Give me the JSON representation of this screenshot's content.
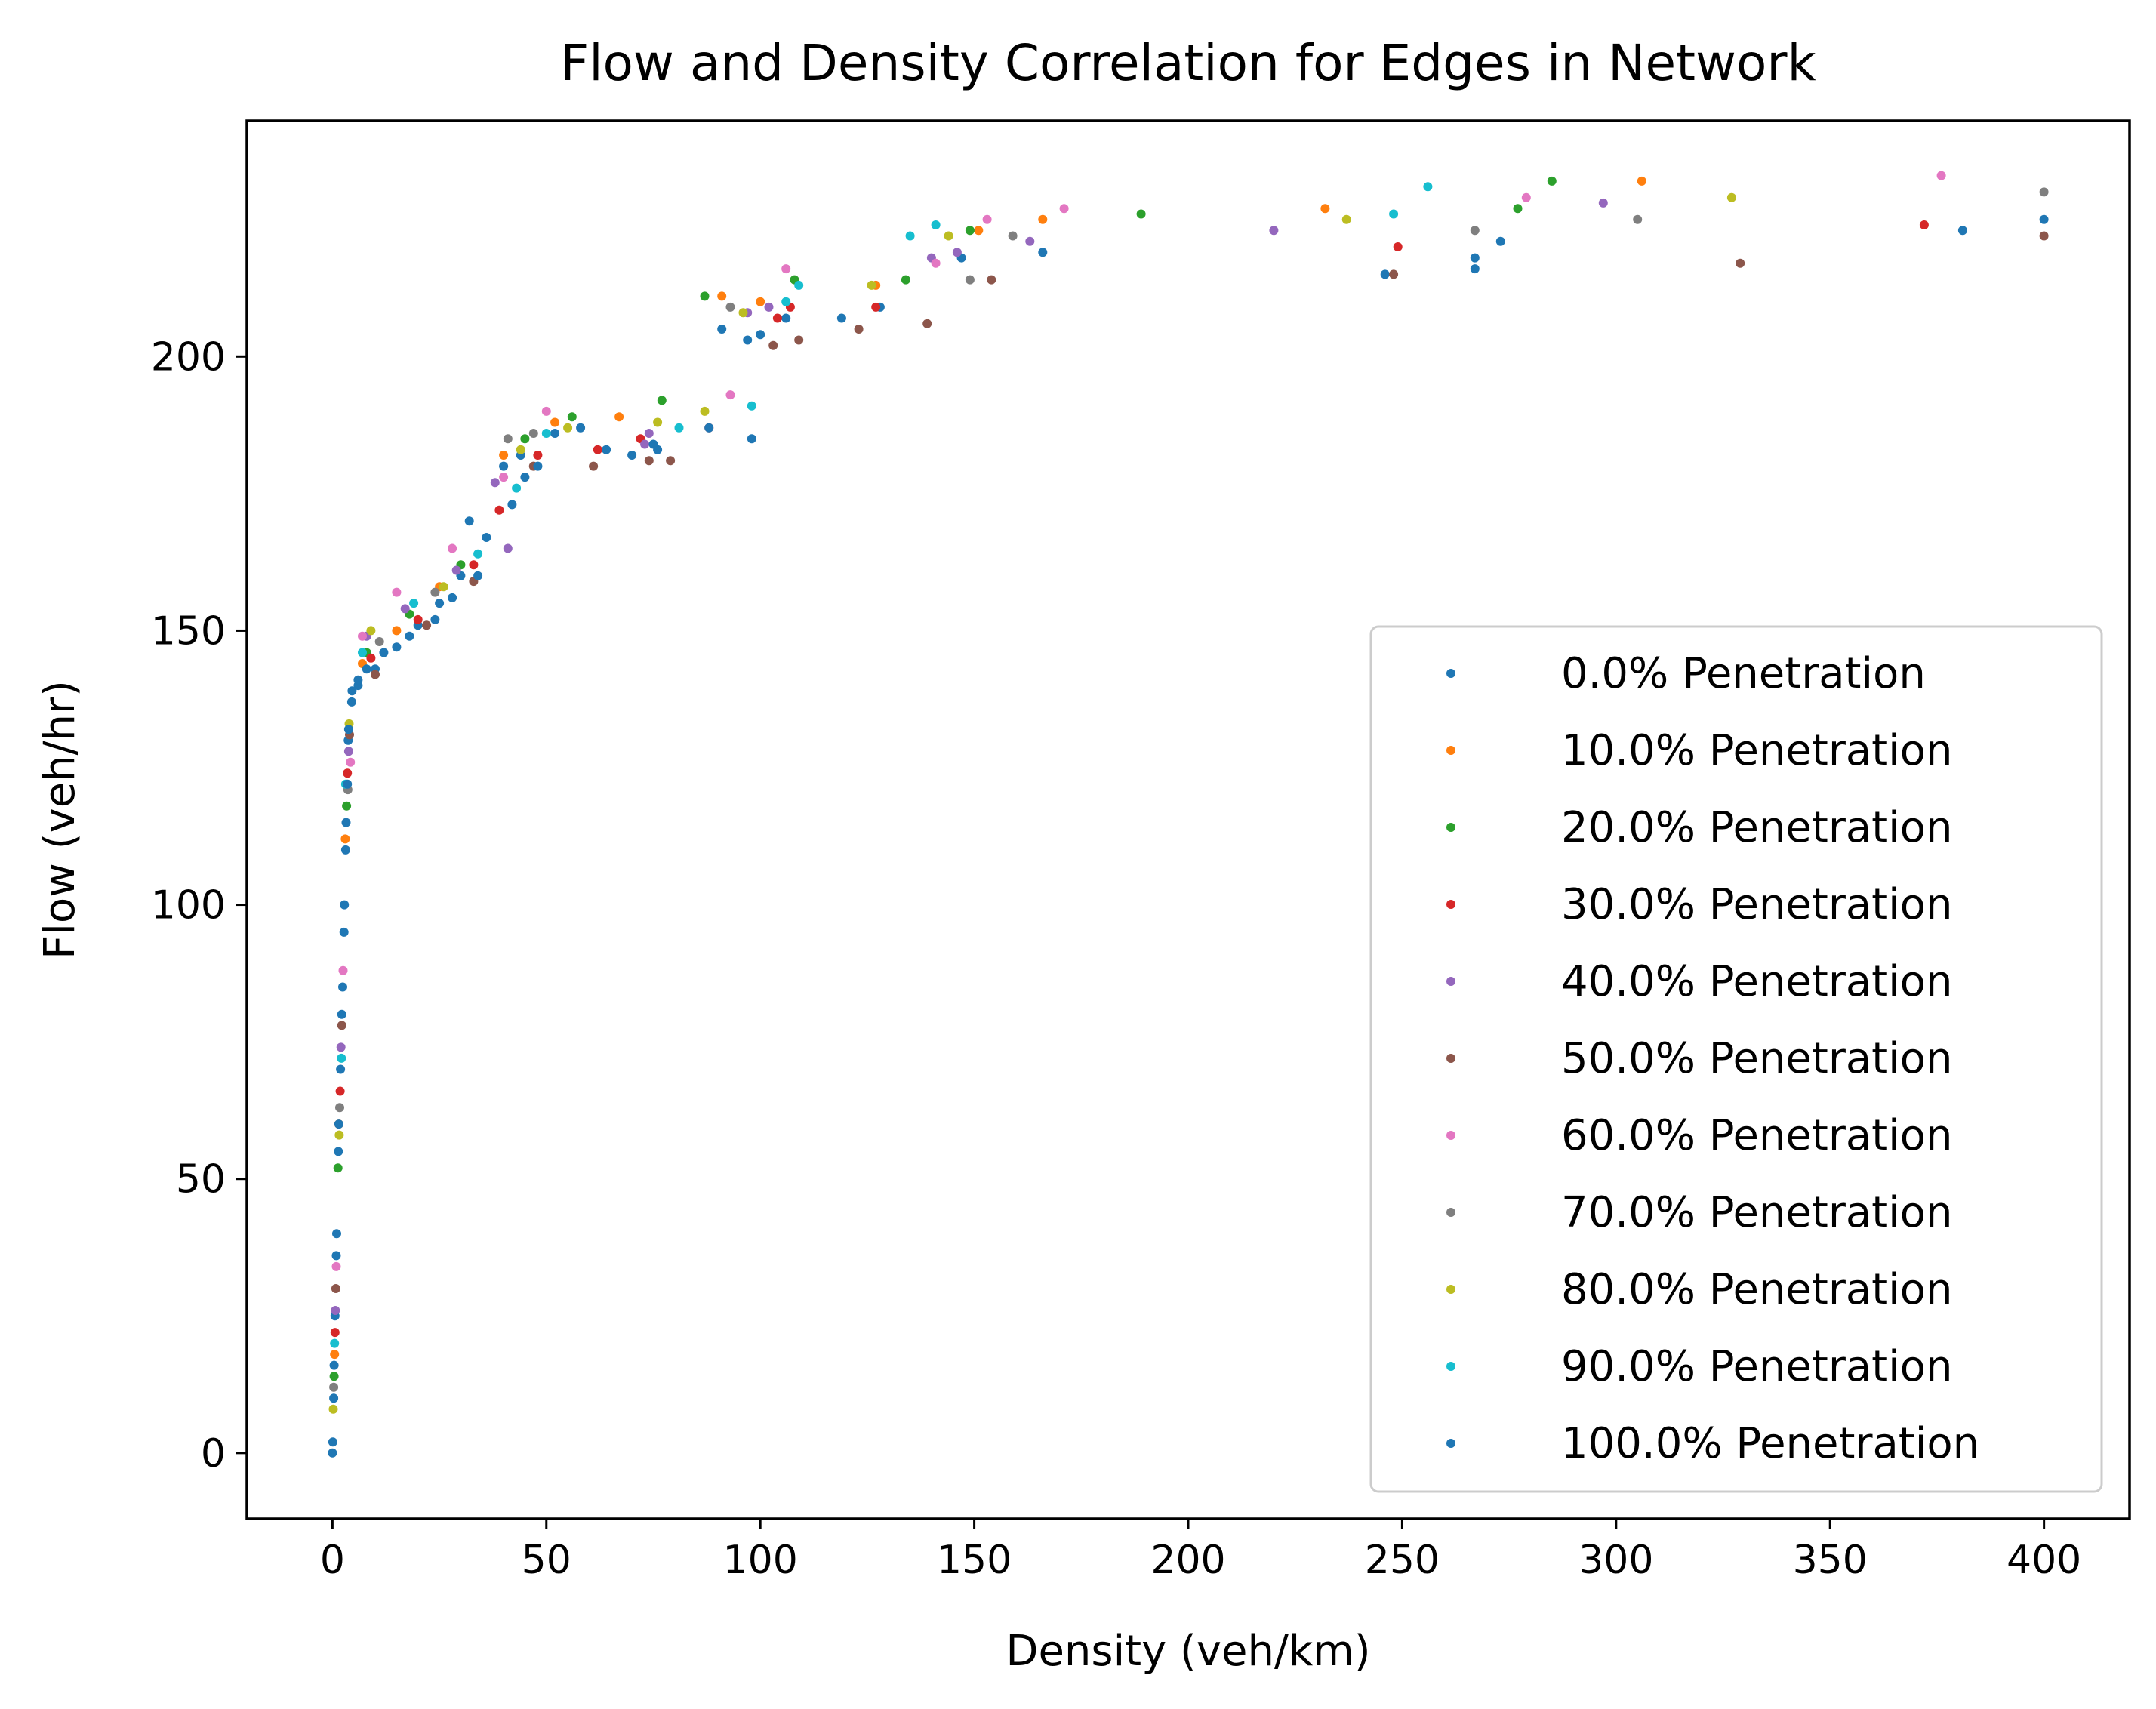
{
  "chart_data": {
    "type": "scatter",
    "title": "Flow and Density Correlation for Edges in Network",
    "xlabel": "Density (veh/km)",
    "ylabel": "Flow (veh/hr)",
    "xlim": [
      -20,
      420
    ],
    "ylim": [
      -12,
      243
    ],
    "x_ticks": [
      0,
      50,
      100,
      150,
      200,
      250,
      300,
      350,
      400
    ],
    "y_ticks": [
      0,
      50,
      100,
      150,
      200
    ],
    "legend_position": "center-right",
    "grid": false,
    "series": [
      {
        "name": "0.0% Penetration",
        "color": "#1f77b4",
        "points": [
          [
            0,
            0
          ],
          [
            0.3,
            10
          ],
          [
            0.6,
            25
          ],
          [
            1.0,
            40
          ],
          [
            1.4,
            55
          ],
          [
            1.9,
            70
          ],
          [
            2.4,
            85
          ],
          [
            2.8,
            100
          ],
          [
            3.2,
            115
          ],
          [
            3.7,
            130
          ],
          [
            4.5,
            137
          ],
          [
            6,
            140
          ],
          [
            10,
            143
          ],
          [
            15,
            147
          ],
          [
            20,
            151
          ],
          [
            25,
            155
          ],
          [
            30,
            160
          ],
          [
            32,
            170
          ],
          [
            40,
            180
          ],
          [
            44,
            182
          ],
          [
            52,
            186
          ],
          [
            64,
            183
          ],
          [
            70,
            182
          ],
          [
            76,
            183
          ],
          [
            91,
            205
          ],
          [
            97,
            203
          ],
          [
            100,
            204
          ],
          [
            106,
            207
          ],
          [
            119,
            207
          ],
          [
            128,
            209
          ],
          [
            147,
            218
          ],
          [
            166,
            219
          ],
          [
            246,
            215
          ],
          [
            267,
            216
          ],
          [
            267,
            218
          ],
          [
            273,
            221
          ],
          [
            381,
            223
          ],
          [
            400,
            225
          ]
        ]
      },
      {
        "name": "10.0% Penetration",
        "color": "#ff7f0e",
        "points": [
          [
            0.5,
            18
          ],
          [
            1.5,
            60
          ],
          [
            3,
            112
          ],
          [
            7,
            144
          ],
          [
            15,
            150
          ],
          [
            25,
            158
          ],
          [
            40,
            182
          ],
          [
            52,
            188
          ],
          [
            67,
            189
          ],
          [
            91,
            211
          ],
          [
            100,
            210
          ],
          [
            127,
            213
          ],
          [
            151,
            223
          ],
          [
            166,
            225
          ],
          [
            232,
            227
          ],
          [
            306,
            232
          ]
        ]
      },
      {
        "name": "20.0% Penetration",
        "color": "#2ca02c",
        "points": [
          [
            0.4,
            14
          ],
          [
            1.3,
            52
          ],
          [
            3.3,
            118
          ],
          [
            8,
            146
          ],
          [
            18,
            153
          ],
          [
            30,
            162
          ],
          [
            45,
            185
          ],
          [
            56,
            189
          ],
          [
            77,
            192
          ],
          [
            87,
            211
          ],
          [
            108,
            214
          ],
          [
            134,
            214
          ],
          [
            149,
            223
          ],
          [
            189,
            226
          ],
          [
            277,
            227
          ],
          [
            285,
            232
          ]
        ]
      },
      {
        "name": "30.0% Penetration",
        "color": "#d62728",
        "points": [
          [
            0.6,
            22
          ],
          [
            1.8,
            66
          ],
          [
            3.5,
            124
          ],
          [
            9,
            145
          ],
          [
            20,
            152
          ],
          [
            33,
            162
          ],
          [
            39,
            172
          ],
          [
            48,
            182
          ],
          [
            62,
            183
          ],
          [
            72,
            185
          ],
          [
            88,
            187
          ],
          [
            104,
            207
          ],
          [
            107,
            209
          ],
          [
            127,
            209
          ],
          [
            249,
            220
          ],
          [
            372,
            224
          ]
        ]
      },
      {
        "name": "40.0% Penetration",
        "color": "#9467bd",
        "points": [
          [
            0.7,
            26
          ],
          [
            2.0,
            74
          ],
          [
            3.8,
            128
          ],
          [
            8,
            149
          ],
          [
            17,
            154
          ],
          [
            29,
            161
          ],
          [
            41,
            165
          ],
          [
            38,
            177
          ],
          [
            73,
            184
          ],
          [
            74,
            186
          ],
          [
            97,
            208
          ],
          [
            102,
            209
          ],
          [
            140,
            218
          ],
          [
            146,
            219
          ],
          [
            163,
            221
          ],
          [
            220,
            223
          ],
          [
            297,
            228
          ]
        ]
      },
      {
        "name": "50.0% Penetration",
        "color": "#8c564b",
        "points": [
          [
            0.8,
            30
          ],
          [
            2.2,
            78
          ],
          [
            4.0,
            131
          ],
          [
            10,
            142
          ],
          [
            22,
            151
          ],
          [
            33,
            159
          ],
          [
            47,
            180
          ],
          [
            61,
            180
          ],
          [
            74,
            181
          ],
          [
            79,
            181
          ],
          [
            103,
            202
          ],
          [
            109,
            203
          ],
          [
            123,
            205
          ],
          [
            139,
            206
          ],
          [
            154,
            214
          ],
          [
            248,
            215
          ],
          [
            329,
            217
          ],
          [
            400,
            222
          ]
        ]
      },
      {
        "name": "60.0% Penetration",
        "color": "#e377c2",
        "points": [
          [
            0.9,
            34
          ],
          [
            2.5,
            88
          ],
          [
            4.2,
            126
          ],
          [
            7,
            149
          ],
          [
            15,
            157
          ],
          [
            28,
            165
          ],
          [
            40,
            178
          ],
          [
            50,
            190
          ],
          [
            93,
            193
          ],
          [
            106,
            216
          ],
          [
            141,
            217
          ],
          [
            153,
            225
          ],
          [
            171,
            227
          ],
          [
            279,
            229
          ],
          [
            376,
            233
          ]
        ]
      },
      {
        "name": "70.0% Penetration",
        "color": "#7f7f7f",
        "points": [
          [
            0.3,
            12
          ],
          [
            1.7,
            63
          ],
          [
            3.6,
            121
          ],
          [
            11,
            148
          ],
          [
            24,
            157
          ],
          [
            41,
            185
          ],
          [
            47,
            186
          ],
          [
            93,
            209
          ],
          [
            149,
            214
          ],
          [
            159,
            222
          ],
          [
            267,
            223
          ],
          [
            305,
            225
          ],
          [
            400,
            230
          ]
        ]
      },
      {
        "name": "80.0% Penetration",
        "color": "#bcbd22",
        "points": [
          [
            0.2,
            8
          ],
          [
            1.6,
            58
          ],
          [
            3.9,
            133
          ],
          [
            9,
            150
          ],
          [
            26,
            158
          ],
          [
            44,
            183
          ],
          [
            55,
            187
          ],
          [
            76,
            188
          ],
          [
            87,
            190
          ],
          [
            96,
            208
          ],
          [
            126,
            213
          ],
          [
            144,
            222
          ],
          [
            237,
            225
          ],
          [
            327,
            229
          ]
        ]
      },
      {
        "name": "90.0% Penetration",
        "color": "#17becf",
        "points": [
          [
            0.5,
            20
          ],
          [
            2.1,
            72
          ],
          [
            3.1,
            122
          ],
          [
            7,
            146
          ],
          [
            19,
            155
          ],
          [
            34,
            164
          ],
          [
            43,
            176
          ],
          [
            50,
            186
          ],
          [
            81,
            187
          ],
          [
            98,
            191
          ],
          [
            106,
            210
          ],
          [
            109,
            213
          ],
          [
            135,
            222
          ],
          [
            141,
            224
          ],
          [
            248,
            226
          ],
          [
            256,
            231
          ]
        ]
      },
      {
        "name": "100.0% Penetration",
        "color": "#1f77b4",
        "points": [
          [
            0.1,
            2
          ],
          [
            0.4,
            16
          ],
          [
            0.9,
            36
          ],
          [
            1.5,
            60
          ],
          [
            2.2,
            80
          ],
          [
            2.7,
            95
          ],
          [
            3.1,
            110
          ],
          [
            3.5,
            122
          ],
          [
            3.8,
            132
          ],
          [
            4.6,
            139
          ],
          [
            6,
            141
          ],
          [
            8,
            143
          ],
          [
            12,
            146
          ],
          [
            18,
            149
          ],
          [
            24,
            152
          ],
          [
            28,
            156
          ],
          [
            34,
            160
          ],
          [
            36,
            167
          ],
          [
            42,
            173
          ],
          [
            45,
            178
          ],
          [
            48,
            180
          ],
          [
            58,
            187
          ],
          [
            75,
            184
          ],
          [
            88,
            187
          ],
          [
            98,
            185
          ]
        ]
      }
    ]
  }
}
